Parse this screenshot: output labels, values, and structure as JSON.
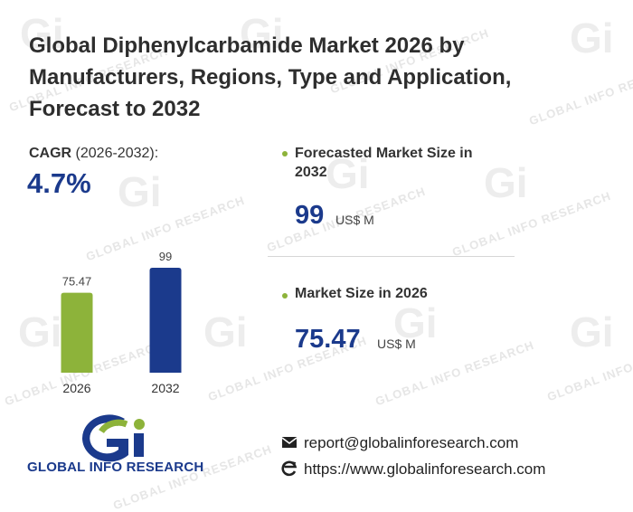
{
  "title": "Global Diphenylcarbamide Market 2026 by Manufacturers, Regions, Type and Application, Forecast to 2032",
  "cagr": {
    "label_bold": "CAGR",
    "label_rest": " (2026-2032):",
    "value": "4.7%"
  },
  "forecast": {
    "label": "Forecasted Market Size in 2032",
    "value": "99",
    "unit": "US$ M"
  },
  "market_size": {
    "label": "Market Size in 2026",
    "value": "75.47",
    "unit": "US$ M"
  },
  "chart_data": {
    "type": "bar",
    "categories": [
      "2026",
      "2032"
    ],
    "values": [
      75.47,
      99
    ],
    "value_labels": [
      "75.47",
      "99"
    ],
    "colors": [
      "#8db33a",
      "#1b3a8c"
    ],
    "ylim": [
      0,
      99
    ]
  },
  "brand": {
    "name": "GLOBAL INFO RESEARCH",
    "watermark": "GLOBAL INFO RESEARCH",
    "watermark_logo": "Gi"
  },
  "contact": {
    "email": "report@globalinforesearch.com",
    "website": "https://www.globalinforesearch.com"
  },
  "icons": {
    "email": "envelope-icon",
    "web": "browser-e-icon"
  }
}
